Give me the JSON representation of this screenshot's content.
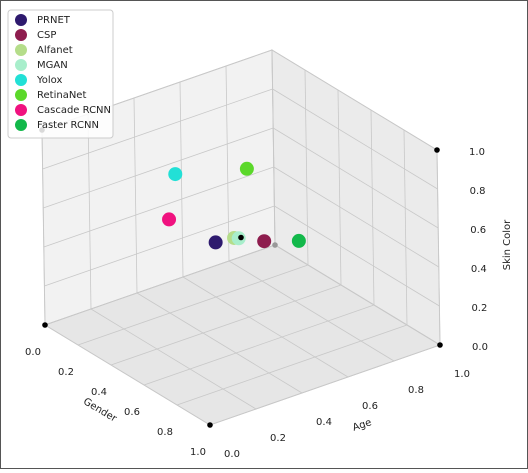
{
  "chart_data": {
    "type": "scatter3d",
    "xlabel": "Gender",
    "ylabel": "Age",
    "zlabel": "Skin Color",
    "xlim": [
      0,
      1
    ],
    "ylim": [
      0,
      1
    ],
    "zlim": [
      0,
      1
    ],
    "xticks": [
      {
        "value": 0,
        "label": "0.0"
      },
      0.2,
      0.4,
      0.6,
      0.8,
      {
        "value": 1,
        "label": "1.0"
      }
    ],
    "yticks": [
      {
        "value": 0,
        "label": "0.0"
      },
      0.2,
      0.4,
      0.6,
      0.8,
      {
        "value": 1,
        "label": "1.0"
      }
    ],
    "zticks": [
      {
        "value": 0,
        "label": "0.0"
      },
      0.2,
      0.4,
      0.6,
      0.8,
      {
        "value": 1,
        "label": "1.0"
      }
    ],
    "grid": true,
    "legend": "upper left",
    "series": [
      {
        "name": "PRNET",
        "color": "#2e1a6e",
        "x": [
          0.5
        ],
        "y": [
          0.39
        ],
        "z": [
          0.52
        ]
      },
      {
        "name": "CSP",
        "color": "#8e1d4e",
        "x": [
          0.5
        ],
        "y": [
          0.6
        ],
        "z": [
          0.44
        ]
      },
      {
        "name": "Alfanet",
        "color": "#b5dd8a",
        "x": [
          0.5
        ],
        "y": [
          0.47
        ],
        "z": [
          0.51
        ]
      },
      {
        "name": "MGAN",
        "color": "#a8eecb",
        "x": [
          0.5
        ],
        "y": [
          0.49
        ],
        "z": [
          0.5
        ]
      },
      {
        "name": "Yolox",
        "color": "#22e0d6",
        "x": [
          0.5
        ],
        "y": [
          0.22
        ],
        "z": [
          0.94
        ]
      },
      {
        "name": "RetinaNet",
        "color": "#5bd82a",
        "x": [
          0.5
        ],
        "y": [
          0.53
        ],
        "z": [
          0.84
        ]
      },
      {
        "name": "Cascade RCNN",
        "color": "#f0127f",
        "x": [
          0.5
        ],
        "y": [
          0.19
        ],
        "z": [
          0.72
        ]
      },
      {
        "name": "Faster RCNN",
        "color": "#12b84a",
        "x": [
          0.5
        ],
        "y": [
          0.75
        ],
        "z": [
          0.38
        ]
      },
      {
        "color": "#000000",
        "x": [
          0,
          1,
          0,
          1,
          1,
          0.5
        ],
        "y": [
          0,
          1,
          0,
          1,
          0,
          0.5
        ],
        "z": [
          1,
          1,
          0,
          0,
          0,
          0.5
        ]
      },
      {
        "color": "#999999",
        "x": [
          0
        ],
        "y": [
          1
        ],
        "z": [
          0
        ]
      }
    ]
  }
}
